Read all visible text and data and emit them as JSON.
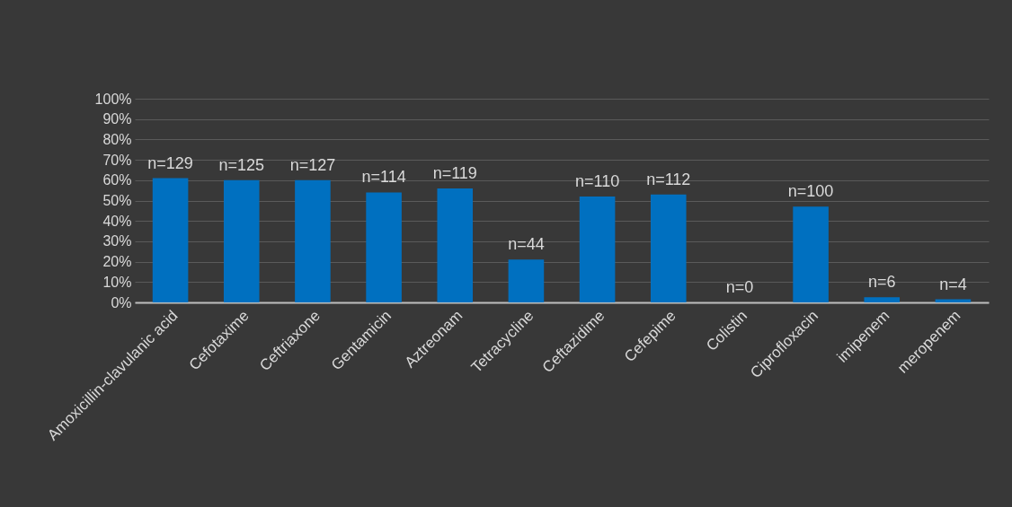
{
  "chart_data": {
    "type": "bar",
    "categories": [
      "Amoxicillin-clavulanic acid",
      "Cefotaxime",
      "Ceftriaxone",
      "Gentamicin",
      "Aztreonam",
      "Tetracycline",
      "Ceftazidime",
      "Cefepime",
      "Colistin",
      "Ciprofloxacin",
      "imipenem",
      "meropenem"
    ],
    "values": [
      61,
      60,
      60,
      54,
      56,
      21,
      52,
      53,
      0,
      47,
      2.5,
      1.5
    ],
    "annotations": [
      {
        "text": "n=129",
        "x": "Amoxicillin-clavulanic acid",
        "y": 61
      },
      {
        "text": "n=125",
        "x": "Cefotaxime",
        "y": 60
      },
      {
        "text": "n=127",
        "x": "Ceftriaxone",
        "y": 60
      },
      {
        "text": "n=114",
        "x": "Gentamicin",
        "y": 54
      },
      {
        "text": "n=119",
        "x": "Aztreonam",
        "y": 56
      },
      {
        "text": "n=44",
        "x": "Tetracycline",
        "y": 21
      },
      {
        "text": "n=110",
        "x": "Ceftazidime",
        "y": 52
      },
      {
        "text": "n=112",
        "x": "Cefepime",
        "y": 53
      },
      {
        "text": "n=0",
        "x": "Colistin",
        "y": 0
      },
      {
        "text": "n=100",
        "x": "Ciprofloxacin",
        "y": 47
      },
      {
        "text": "n=6",
        "x": "imipenem",
        "y": 2.5
      },
      {
        "text": "n=4",
        "x": "meropenem",
        "y": 1.5
      }
    ],
    "color": "#0070c0",
    "ylim": [
      0,
      100
    ],
    "yticks": [
      {
        "value": 0,
        "label": "0%"
      },
      {
        "value": 10,
        "label": "10%"
      },
      {
        "value": 20,
        "label": "20%"
      },
      {
        "value": 30,
        "label": "30%"
      },
      {
        "value": 40,
        "label": "40%"
      },
      {
        "value": 50,
        "label": "50%"
      },
      {
        "value": 60,
        "label": "60%"
      },
      {
        "value": 70,
        "label": "70%"
      },
      {
        "value": 80,
        "label": "80%"
      },
      {
        "value": 90,
        "label": "90%"
      },
      {
        "value": 100,
        "label": "100%"
      }
    ],
    "grid": "y"
  }
}
